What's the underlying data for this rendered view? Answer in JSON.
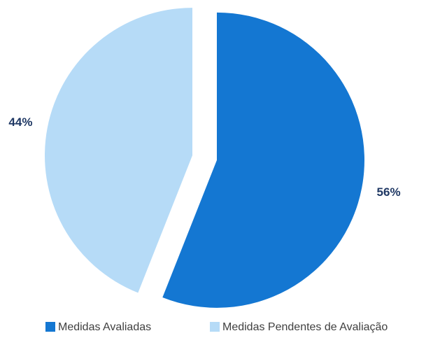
{
  "chart_data": {
    "type": "pie",
    "categories": [
      "Medidas Avaliadas",
      "Medidas Pendentes de Avaliação"
    ],
    "values": [
      56,
      44
    ],
    "value_labels": [
      "56%",
      "44%"
    ],
    "colors": [
      "#1477d2",
      "#b6dbf7"
    ],
    "legend": "bottom"
  }
}
